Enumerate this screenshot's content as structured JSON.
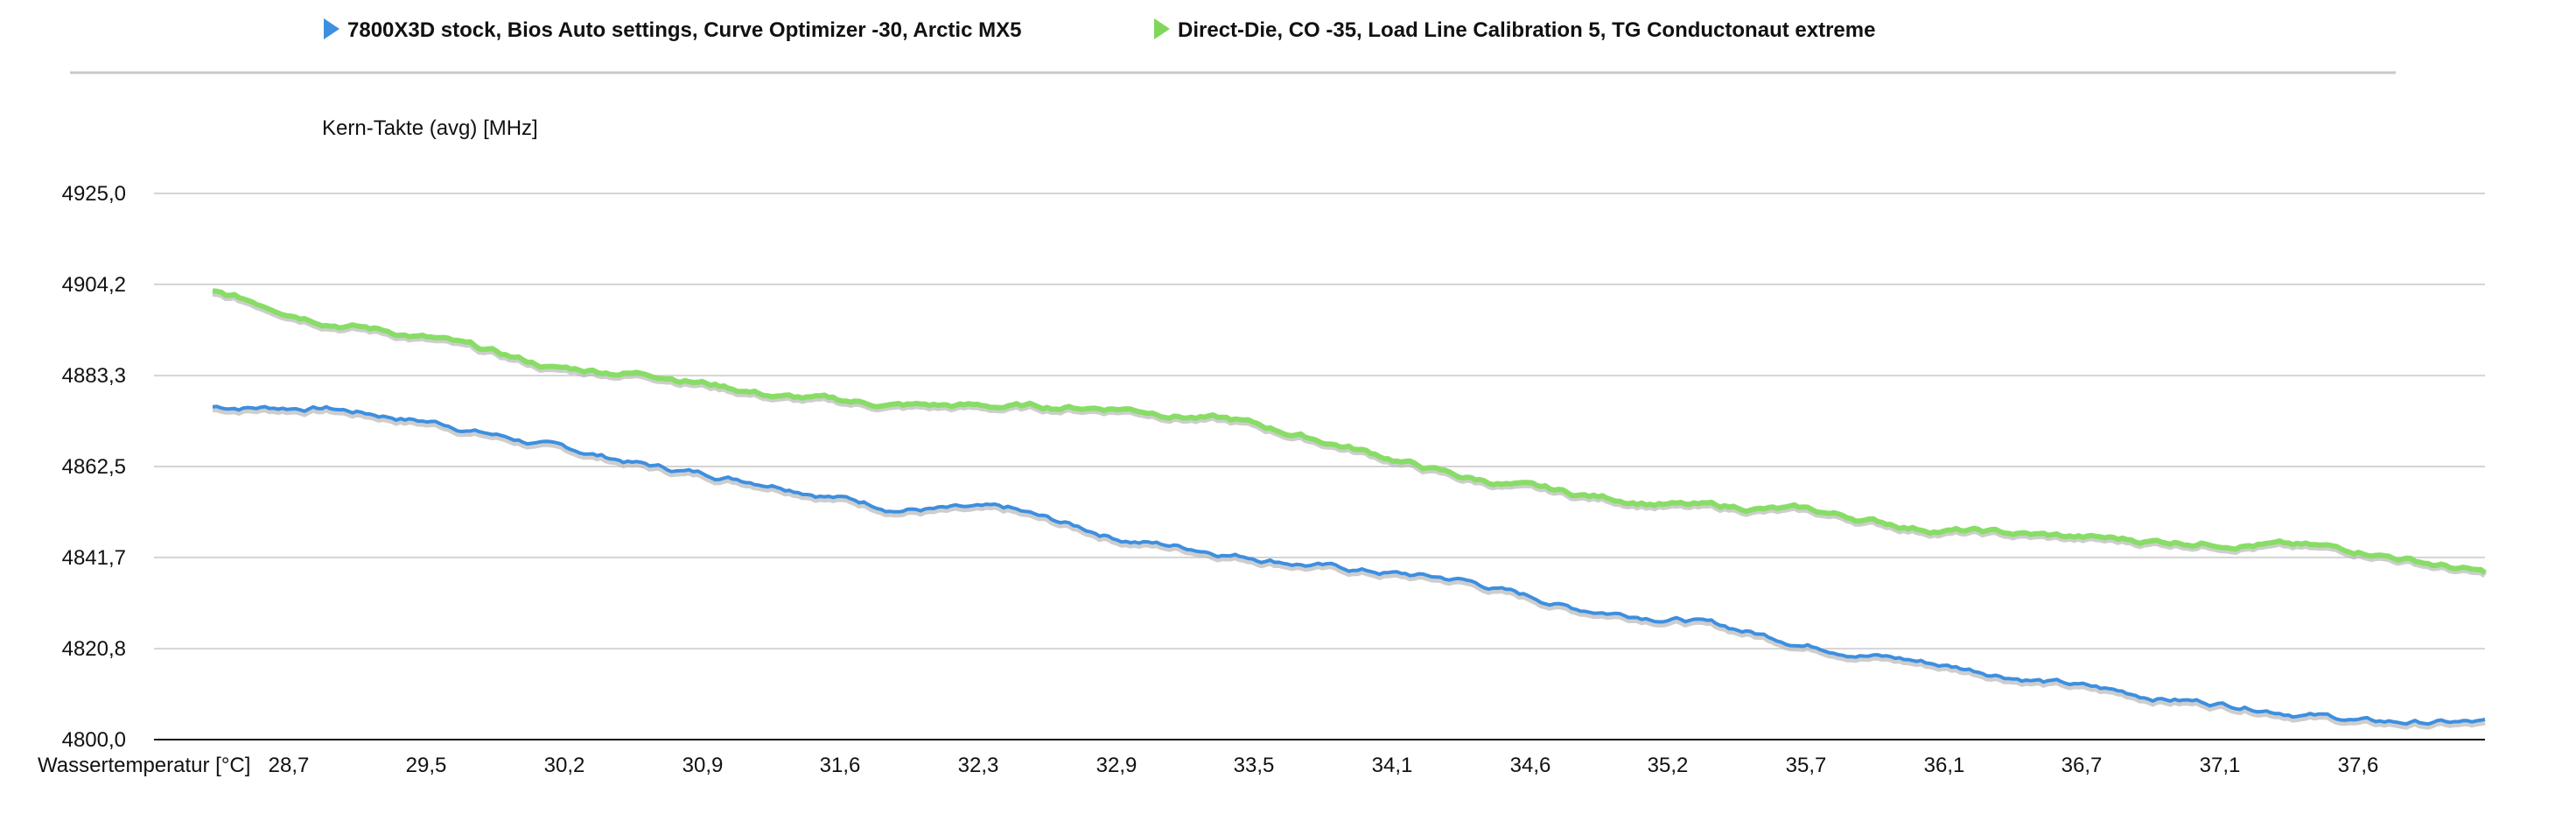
{
  "chart_data": {
    "type": "line",
    "title": "",
    "ylabel": "Kern-Takte (avg) [MHz]",
    "xlabel": "Wassertemperatur [°C]",
    "ylim": [
      4800.0,
      4925.0
    ],
    "yticks": [
      "4800,0",
      "4820,8",
      "4841,7",
      "4862,5",
      "4883,3",
      "4904,2",
      "4925,0"
    ],
    "ytick_values": [
      4800.0,
      4820.8,
      4841.7,
      4862.5,
      4883.3,
      4904.2,
      4925.0
    ],
    "xticks": [
      "28,7",
      "29,5",
      "30,2",
      "30,9",
      "31,6",
      "32,3",
      "32,9",
      "33,5",
      "34,1",
      "34,6",
      "35,2",
      "35,7",
      "36,1",
      "36,7",
      "37,1",
      "37,6"
    ],
    "legend_position": "top",
    "grid": true,
    "x_progress": [
      0.0,
      0.05,
      0.1,
      0.15,
      0.2,
      0.25,
      0.3,
      0.35,
      0.4,
      0.45,
      0.5,
      0.55,
      0.6,
      0.65,
      0.7,
      0.75,
      0.8,
      0.85,
      0.9,
      0.95,
      1.0
    ],
    "series": [
      {
        "name": "7800X3D stock, Bios Auto settings, Curve Optimizer -30, Arctic MX5",
        "color": "#3d8fe0",
        "values": [
          4876.2,
          4876.0,
          4872.5,
          4867.0,
          4862.0,
          4858.5,
          4853.0,
          4852.5,
          4846.0,
          4842.5,
          4839.0,
          4836.5,
          4830.0,
          4827.5,
          4822.0,
          4818.0,
          4814.0,
          4810.0,
          4807.5,
          4804.0,
          4803.8
        ]
      },
      {
        "name": "Direct-Die, CO -35, Load Line Calibration 5, TG Conductonaut extreme",
        "color": "#88dd66",
        "values": [
          4902.5,
          4896.0,
          4891.5,
          4885.0,
          4883.5,
          4878.5,
          4876.5,
          4876.2,
          4876.0,
          4873.0,
          4867.0,
          4860.0,
          4856.0,
          4853.5,
          4852.5,
          4848.5,
          4846.8,
          4845.5,
          4845.0,
          4843.0,
          4838.0
        ]
      }
    ]
  }
}
